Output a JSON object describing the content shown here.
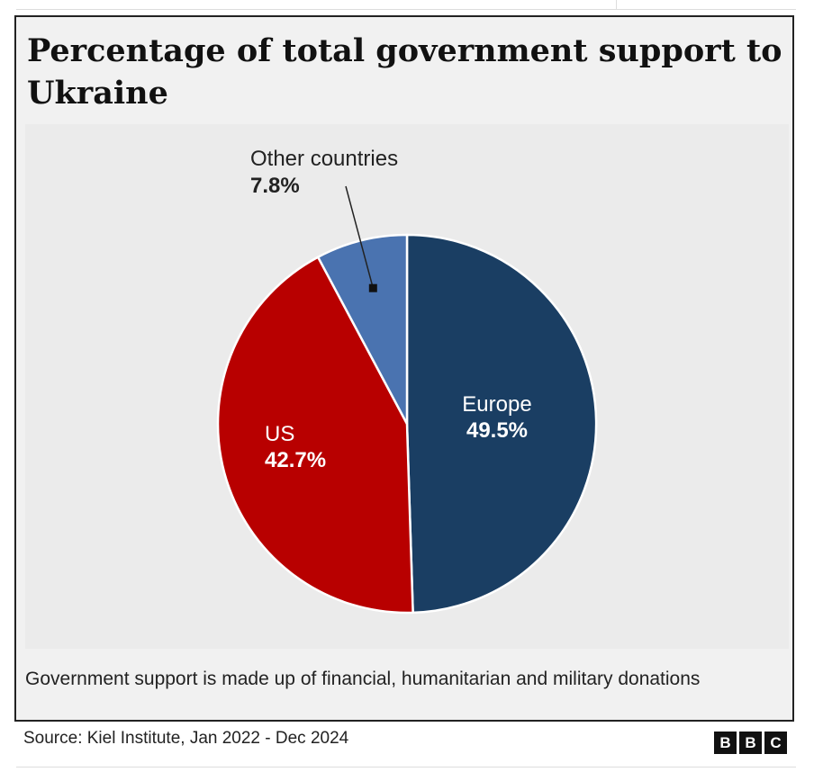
{
  "chart_data": {
    "type": "pie",
    "title": "Percentage of total government support to Ukraine",
    "slices": [
      {
        "label": "Europe",
        "value": 49.5,
        "value_label": "49.5%",
        "color": "#1a3e63",
        "label_color": "#ffffff"
      },
      {
        "label": "US",
        "value": 42.7,
        "value_label": "42.7%",
        "color": "#b80000",
        "label_color": "#ffffff"
      },
      {
        "label": "Other countries",
        "value": 7.8,
        "value_label": "7.8%",
        "color": "#4a73b0",
        "label_color": "#222222"
      }
    ],
    "start_angle_deg": 0,
    "direction": "clockwise",
    "note": "Government support is made up of financial, humanitarian and military donations",
    "source": "Source: Kiel Institute, Jan 2022 - Dec 2024"
  },
  "brand": {
    "letters": [
      "B",
      "B",
      "C"
    ]
  }
}
